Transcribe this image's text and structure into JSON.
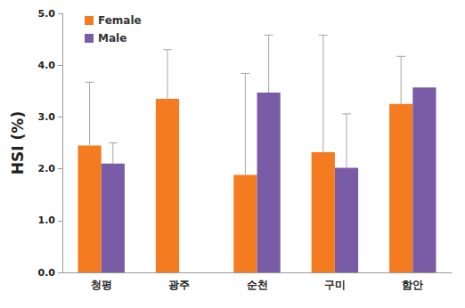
{
  "chart_data": {
    "type": "bar",
    "ylabel": "HSI (%)",
    "categories": [
      "청평",
      "광주",
      "순천",
      "구미",
      "함안"
    ],
    "series": [
      {
        "name": "Female",
        "color": "#F47B20",
        "values": [
          2.45,
          3.35,
          1.88,
          2.32,
          3.25
        ],
        "errors": [
          1.22,
          0.95,
          1.96,
          2.26,
          0.92
        ]
      },
      {
        "name": "Male",
        "color": "#7A5CA6",
        "values": [
          2.1,
          null,
          3.47,
          2.02,
          3.57
        ],
        "errors": [
          0.4,
          null,
          1.11,
          1.04,
          null
        ]
      }
    ],
    "ylim": [
      0,
      5
    ],
    "yticks": [
      {
        "value": 0,
        "label": "0.0"
      },
      {
        "value": 1,
        "label": "1.0"
      },
      {
        "value": 2,
        "label": "2.0"
      },
      {
        "value": 3,
        "label": "3.0"
      },
      {
        "value": 4,
        "label": "4.0"
      },
      {
        "value": 5,
        "label": "5.0"
      }
    ],
    "legend": "upper left",
    "grid": false
  }
}
